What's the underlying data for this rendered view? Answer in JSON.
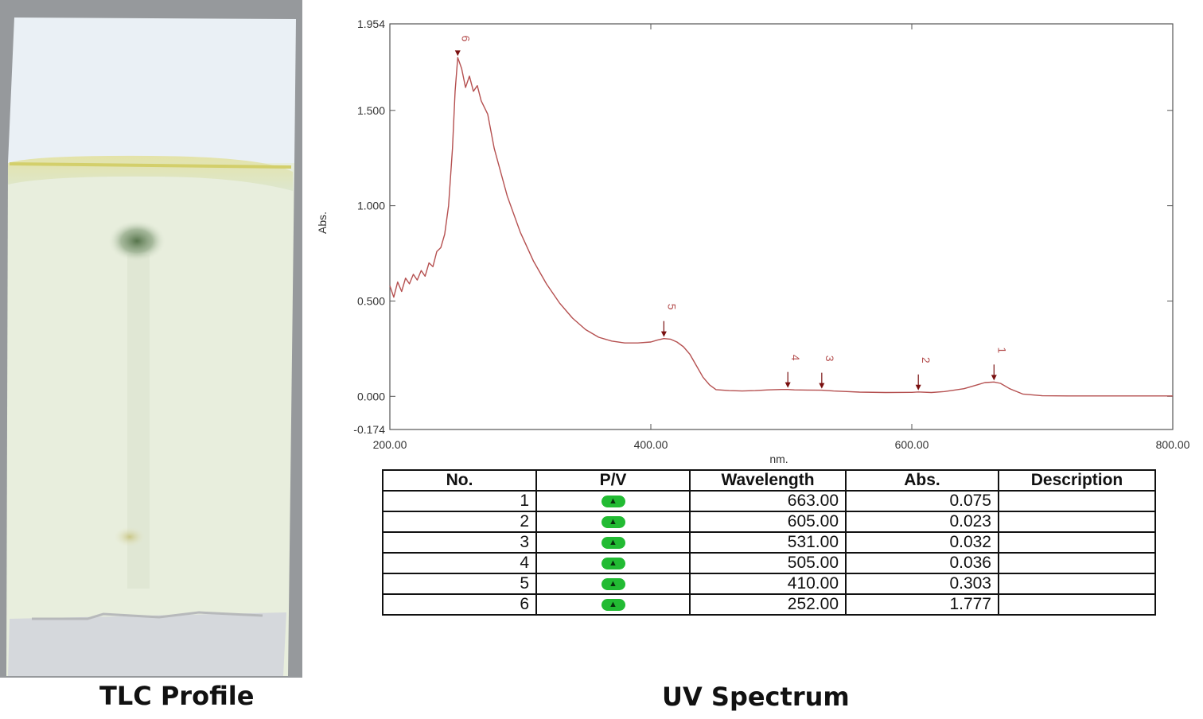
{
  "captions": {
    "tlc": "TLC Profile",
    "uv": "UV Spectrum"
  },
  "chart_data": {
    "type": "line",
    "xlabel": "nm.",
    "ylabel": "Abs.",
    "xlim": [
      200,
      800
    ],
    "ylim": [
      -0.174,
      1.954
    ],
    "x_ticks": [
      "200.00",
      "400.00",
      "600.00",
      "800.00"
    ],
    "y_ticks": [
      "1.954",
      "1.500",
      "1.000",
      "0.500",
      "0.000",
      "-0.174"
    ],
    "grid": false,
    "line_color": "#b55050",
    "series": [
      {
        "x": [
          200,
          203,
          206,
          209,
          212,
          215,
          218,
          221,
          224,
          227,
          230,
          233,
          236,
          239,
          242,
          245,
          248,
          250,
          252,
          255,
          258,
          261,
          264,
          267,
          270,
          275,
          280,
          290,
          300,
          310,
          320,
          330,
          340,
          350,
          360,
          370,
          380,
          390,
          400,
          405,
          410,
          415,
          420,
          425,
          430,
          435,
          440,
          445,
          450,
          460,
          470,
          480,
          490,
          500,
          505,
          510,
          520,
          531,
          540,
          560,
          580,
          600,
          605,
          615,
          625,
          640,
          650,
          656,
          663,
          668,
          675,
          685,
          700,
          720,
          750,
          800
        ],
        "y": [
          0.58,
          0.52,
          0.6,
          0.55,
          0.62,
          0.59,
          0.64,
          0.61,
          0.66,
          0.63,
          0.7,
          0.68,
          0.76,
          0.78,
          0.85,
          1.0,
          1.3,
          1.6,
          1.777,
          1.72,
          1.62,
          1.68,
          1.6,
          1.63,
          1.55,
          1.48,
          1.3,
          1.05,
          0.86,
          0.71,
          0.59,
          0.49,
          0.41,
          0.35,
          0.31,
          0.29,
          0.28,
          0.28,
          0.285,
          0.295,
          0.303,
          0.3,
          0.285,
          0.26,
          0.22,
          0.16,
          0.1,
          0.06,
          0.035,
          0.03,
          0.028,
          0.03,
          0.034,
          0.036,
          0.036,
          0.034,
          0.033,
          0.032,
          0.028,
          0.022,
          0.02,
          0.021,
          0.023,
          0.02,
          0.025,
          0.04,
          0.06,
          0.072,
          0.075,
          0.068,
          0.04,
          0.012,
          0.003,
          0.002,
          0.002,
          0.002
        ]
      }
    ],
    "peaks": [
      {
        "no": "1",
        "wavelength": "663.00",
        "abs": "0.075",
        "x": 663,
        "y": 0.075
      },
      {
        "no": "2",
        "wavelength": "605.00",
        "abs": "0.023",
        "x": 605,
        "y": 0.023
      },
      {
        "no": "3",
        "wavelength": "531.00",
        "abs": "0.032",
        "x": 531,
        "y": 0.032
      },
      {
        "no": "4",
        "wavelength": "505.00",
        "abs": "0.036",
        "x": 505,
        "y": 0.036
      },
      {
        "no": "5",
        "wavelength": "410.00",
        "abs": "0.303",
        "x": 410,
        "y": 0.303
      },
      {
        "no": "6",
        "wavelength": "252.00",
        "abs": "1.777",
        "x": 252,
        "y": 1.777
      }
    ]
  },
  "table": {
    "headers": [
      "No.",
      "P/V",
      "Wavelength",
      "Abs.",
      "Description"
    ],
    "rows": [
      {
        "no": "1",
        "pv": "peak",
        "wavelength": "663.00",
        "abs": "0.075",
        "description": ""
      },
      {
        "no": "2",
        "pv": "peak",
        "wavelength": "605.00",
        "abs": "0.023",
        "description": ""
      },
      {
        "no": "3",
        "pv": "peak",
        "wavelength": "531.00",
        "abs": "0.032",
        "description": ""
      },
      {
        "no": "4",
        "pv": "peak",
        "wavelength": "505.00",
        "abs": "0.036",
        "description": ""
      },
      {
        "no": "5",
        "pv": "peak",
        "wavelength": "410.00",
        "abs": "0.303",
        "description": ""
      },
      {
        "no": "6",
        "pv": "peak",
        "wavelength": "252.00",
        "abs": "1.777",
        "description": ""
      }
    ]
  }
}
